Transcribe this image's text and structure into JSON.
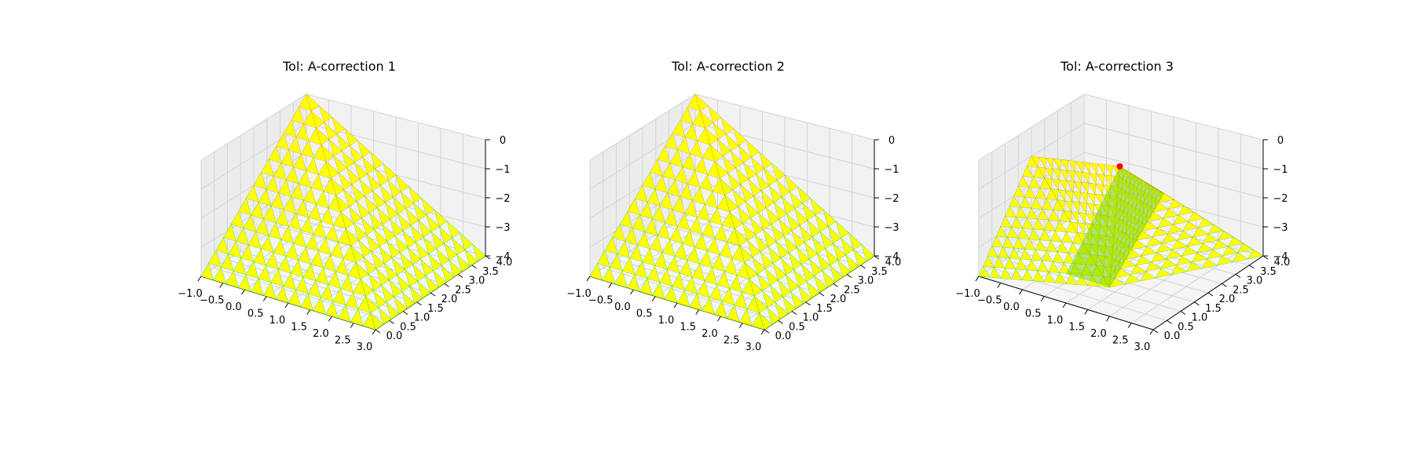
{
  "figure": {
    "background": "#ffffff"
  },
  "colors": {
    "surface_fill": "#ffff00",
    "surface_mesh_low": "#00cc44",
    "surface_mesh_high": "#ff8000",
    "pane_left": "#ececec",
    "pane_right": "#f2f2f2",
    "pane_floor": "#f5f5f5",
    "grid": "#d3d3d3",
    "marker": "#ff0000"
  },
  "chart_data": [
    {
      "type": "surface3d",
      "title": "Tol: A-correction 1",
      "xlabel": "",
      "ylabel": "",
      "zlabel": "",
      "xlim": [
        -1.0,
        3.0
      ],
      "ylim": [
        0.0,
        4.0
      ],
      "zlim": [
        -4.0,
        0.0
      ],
      "x_ticks": [
        "−1.0",
        "−0.5",
        "0.0",
        "0.5",
        "1.0",
        "1.5",
        "2.0",
        "2.5",
        "3.0"
      ],
      "y_ticks": [
        "0.0",
        "0.5",
        "1.0",
        "1.5",
        "2.0",
        "2.5",
        "3.0",
        "3.5",
        "4.0"
      ],
      "z_ticks": [
        "0",
        "−1",
        "−2",
        "−3",
        "−4"
      ],
      "grid": true,
      "surface_vertices": [
        {
          "x": -1.0,
          "y": 0.0,
          "z": -4.0
        },
        {
          "x": -1.0,
          "y": 4.0,
          "z": 0.0
        },
        {
          "x": 3.0,
          "y": 4.0,
          "z": -4.0
        },
        {
          "x": 3.0,
          "y": 0.0,
          "z": -4.0
        }
      ],
      "markers": []
    },
    {
      "type": "surface3d",
      "title": "Tol: A-correction 2",
      "xlabel": "",
      "ylabel": "",
      "zlabel": "",
      "xlim": [
        -1.0,
        3.0
      ],
      "ylim": [
        0.0,
        4.0
      ],
      "zlim": [
        -4.0,
        0.0
      ],
      "x_ticks": [
        "−1.0",
        "−0.5",
        "0.0",
        "0.5",
        "1.0",
        "1.5",
        "2.0",
        "2.5",
        "3.0"
      ],
      "y_ticks": [
        "0.0",
        "0.5",
        "1.0",
        "1.5",
        "2.0",
        "2.5",
        "3.0",
        "3.5",
        "4.0"
      ],
      "z_ticks": [
        "0",
        "−1",
        "−2",
        "−3",
        "−4"
      ],
      "grid": true,
      "surface_vertices": [
        {
          "x": -1.0,
          "y": 0.0,
          "z": -4.0
        },
        {
          "x": -1.0,
          "y": 4.0,
          "z": 0.0
        },
        {
          "x": 3.0,
          "y": 4.0,
          "z": -4.0
        },
        {
          "x": 3.0,
          "y": 0.0,
          "z": -4.0
        }
      ],
      "markers": []
    },
    {
      "type": "surface3d",
      "title": "Tol: A-correction 3",
      "xlabel": "",
      "ylabel": "",
      "zlabel": "",
      "xlim": [
        -1.0,
        3.0
      ],
      "ylim": [
        0.0,
        4.0
      ],
      "zlim": [
        -4.0,
        0.0
      ],
      "x_ticks": [
        "−1.0",
        "−0.5",
        "0.0",
        "0.5",
        "1.0",
        "1.5",
        "2.0",
        "2.5",
        "3.0"
      ],
      "y_ticks": [
        "0.0",
        "0.5",
        "1.0",
        "1.5",
        "2.0",
        "2.5",
        "3.0",
        "3.5",
        "4.0"
      ],
      "z_ticks": [
        "0",
        "−1",
        "−2",
        "−3",
        "−4"
      ],
      "grid": true,
      "surface_vertices": [
        {
          "x": -1.0,
          "y": 0.0,
          "z": -4.0
        },
        {
          "x": -1.0,
          "y": 2.0,
          "z": -1.0
        },
        {
          "x": 1.0,
          "y": 2.0,
          "z": -0.5
        },
        {
          "x": 2.0,
          "y": 2.0,
          "z": -1.0
        },
        {
          "x": 2.0,
          "y": 0.0,
          "z": -3.0
        },
        {
          "x": 3.0,
          "y": 4.0,
          "z": -4.0
        }
      ],
      "markers": [
        {
          "x": 1.0,
          "y": 2.0,
          "z": -0.5
        }
      ]
    }
  ]
}
